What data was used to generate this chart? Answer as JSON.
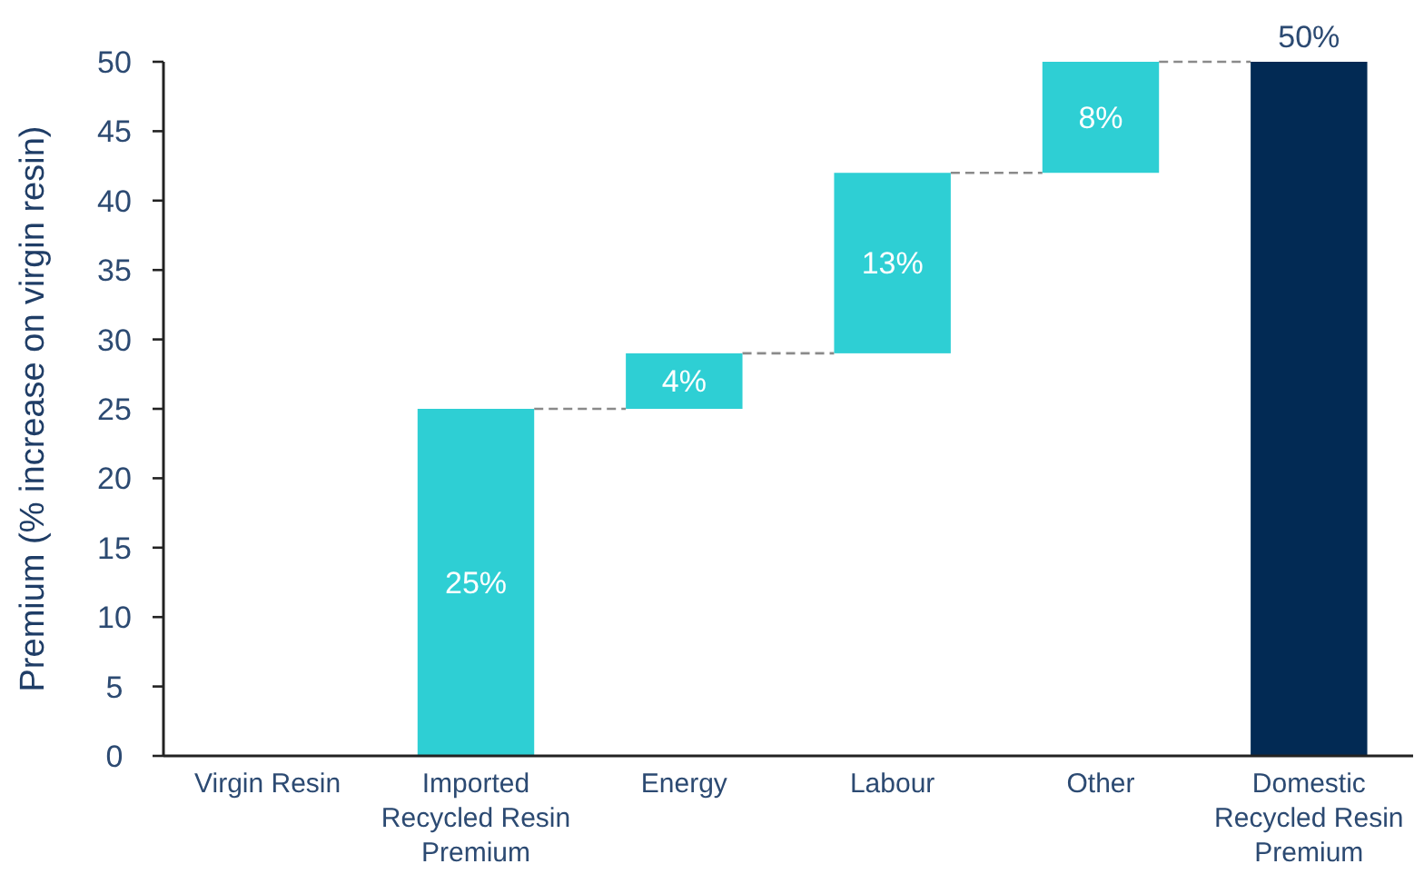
{
  "chart_data": {
    "type": "bar",
    "categories": [
      "Virgin Resin",
      "Imported Recycled Resin Premium",
      "Energy",
      "Labour",
      "Other",
      "Domestic Recycled Resin Premium"
    ],
    "values": [
      null,
      25,
      4,
      13,
      8,
      50
    ],
    "base": [
      null,
      0,
      25,
      29,
      42,
      0
    ],
    "colors": [
      null,
      "#2ecfd4",
      "#2ecfd4",
      "#2ecfd4",
      "#2ecfd4",
      "#022a54"
    ],
    "value_labels": [
      null,
      "25%",
      "4%",
      "13%",
      "8%",
      "50%"
    ],
    "ylabel": "Premium (% increase on virgin resin)",
    "ylim": [
      0,
      50
    ],
    "yticks": [
      0,
      5,
      10,
      15,
      20,
      25,
      30,
      35,
      40,
      45,
      50
    ],
    "grid": false
  }
}
